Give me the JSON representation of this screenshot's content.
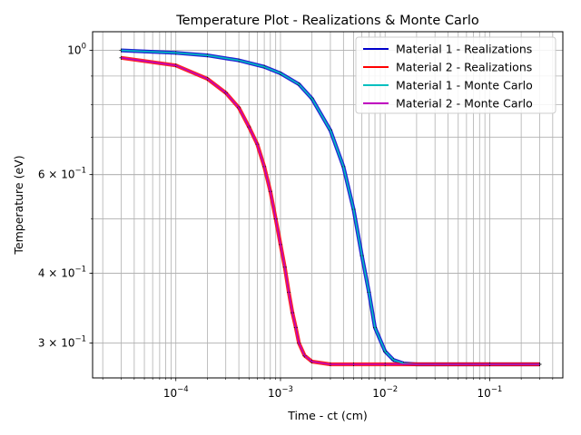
{
  "chart_data": {
    "type": "line",
    "title": "Temperature Plot - Realizations & Monte Carlo",
    "xlabel": "Time - ct (cm)",
    "ylabel": "Temperature (eV)",
    "xscale": "log",
    "yscale": "log",
    "xlim": [
      1.6e-05,
      0.5
    ],
    "ylim": [
      0.26,
      1.08
    ],
    "grid": true,
    "legend_position": "top-right",
    "x_ticks": [
      {
        "value": 0.0001,
        "base": "10",
        "exp": "−4"
      },
      {
        "value": 0.001,
        "base": "10",
        "exp": "−3"
      },
      {
        "value": 0.01,
        "base": "10",
        "exp": "−2"
      },
      {
        "value": 0.1,
        "base": "10",
        "exp": "−1"
      }
    ],
    "y_ticks": [
      {
        "value": 1.0,
        "base": "10",
        "exp": "0",
        "mant": ""
      },
      {
        "value": 0.6,
        "base": "10",
        "exp": "−1",
        "mant": "6 × "
      },
      {
        "value": 0.4,
        "base": "10",
        "exp": "−1",
        "mant": "4 × "
      },
      {
        "value": 0.3,
        "base": "10",
        "exp": "−1",
        "mant": "3 × "
      }
    ],
    "series": [
      {
        "name": "Material 1 - Realizations",
        "color": "#0000cc",
        "x": [
          3e-05,
          0.0001,
          0.0002,
          0.0004,
          0.0007,
          0.001,
          0.0015,
          0.002,
          0.003,
          0.004,
          0.005,
          0.006,
          0.007,
          0.008,
          0.01,
          0.012,
          0.015,
          0.02,
          0.05,
          0.1,
          0.3
        ],
        "y": [
          1.0,
          0.99,
          0.98,
          0.96,
          0.935,
          0.91,
          0.87,
          0.82,
          0.72,
          0.62,
          0.52,
          0.43,
          0.37,
          0.32,
          0.29,
          0.28,
          0.276,
          0.275,
          0.275,
          0.275,
          0.275
        ]
      },
      {
        "name": "Material 2 - Realizations",
        "color": "#ff0000",
        "x": [
          3e-05,
          0.0001,
          0.0002,
          0.0003,
          0.0004,
          0.0005,
          0.0006,
          0.0007,
          0.0008,
          0.0009,
          0.001,
          0.0011,
          0.0012,
          0.0013,
          0.0014,
          0.0015,
          0.0017,
          0.002,
          0.003,
          0.005,
          0.01,
          0.1,
          0.3
        ],
        "y": [
          0.97,
          0.94,
          0.89,
          0.84,
          0.79,
          0.73,
          0.68,
          0.62,
          0.56,
          0.5,
          0.45,
          0.41,
          0.37,
          0.34,
          0.32,
          0.3,
          0.285,
          0.278,
          0.275,
          0.275,
          0.275,
          0.275,
          0.275
        ]
      },
      {
        "name": "Material 1 - Monte Carlo",
        "color": "#00bfbf",
        "x": [
          3e-05,
          0.0001,
          0.0002,
          0.0004,
          0.0007,
          0.001,
          0.0015,
          0.002,
          0.003,
          0.004,
          0.005,
          0.006,
          0.007,
          0.008,
          0.01,
          0.012,
          0.015,
          0.02,
          0.05,
          0.1,
          0.3
        ],
        "y": [
          1.0,
          0.99,
          0.98,
          0.96,
          0.935,
          0.91,
          0.87,
          0.82,
          0.72,
          0.62,
          0.52,
          0.43,
          0.37,
          0.32,
          0.29,
          0.28,
          0.276,
          0.275,
          0.275,
          0.275,
          0.275
        ]
      },
      {
        "name": "Material 2 - Monte Carlo",
        "color": "#bf00bf",
        "x": [
          3e-05,
          0.0001,
          0.0002,
          0.0003,
          0.0004,
          0.0005,
          0.0006,
          0.0007,
          0.0008,
          0.0009,
          0.001,
          0.0011,
          0.0012,
          0.0013,
          0.0014,
          0.0015,
          0.0017,
          0.002,
          0.003,
          0.005,
          0.01,
          0.1,
          0.3
        ],
        "y": [
          0.97,
          0.94,
          0.89,
          0.84,
          0.79,
          0.73,
          0.68,
          0.62,
          0.56,
          0.5,
          0.45,
          0.41,
          0.37,
          0.34,
          0.32,
          0.3,
          0.285,
          0.278,
          0.275,
          0.275,
          0.275,
          0.275,
          0.275
        ]
      }
    ]
  }
}
